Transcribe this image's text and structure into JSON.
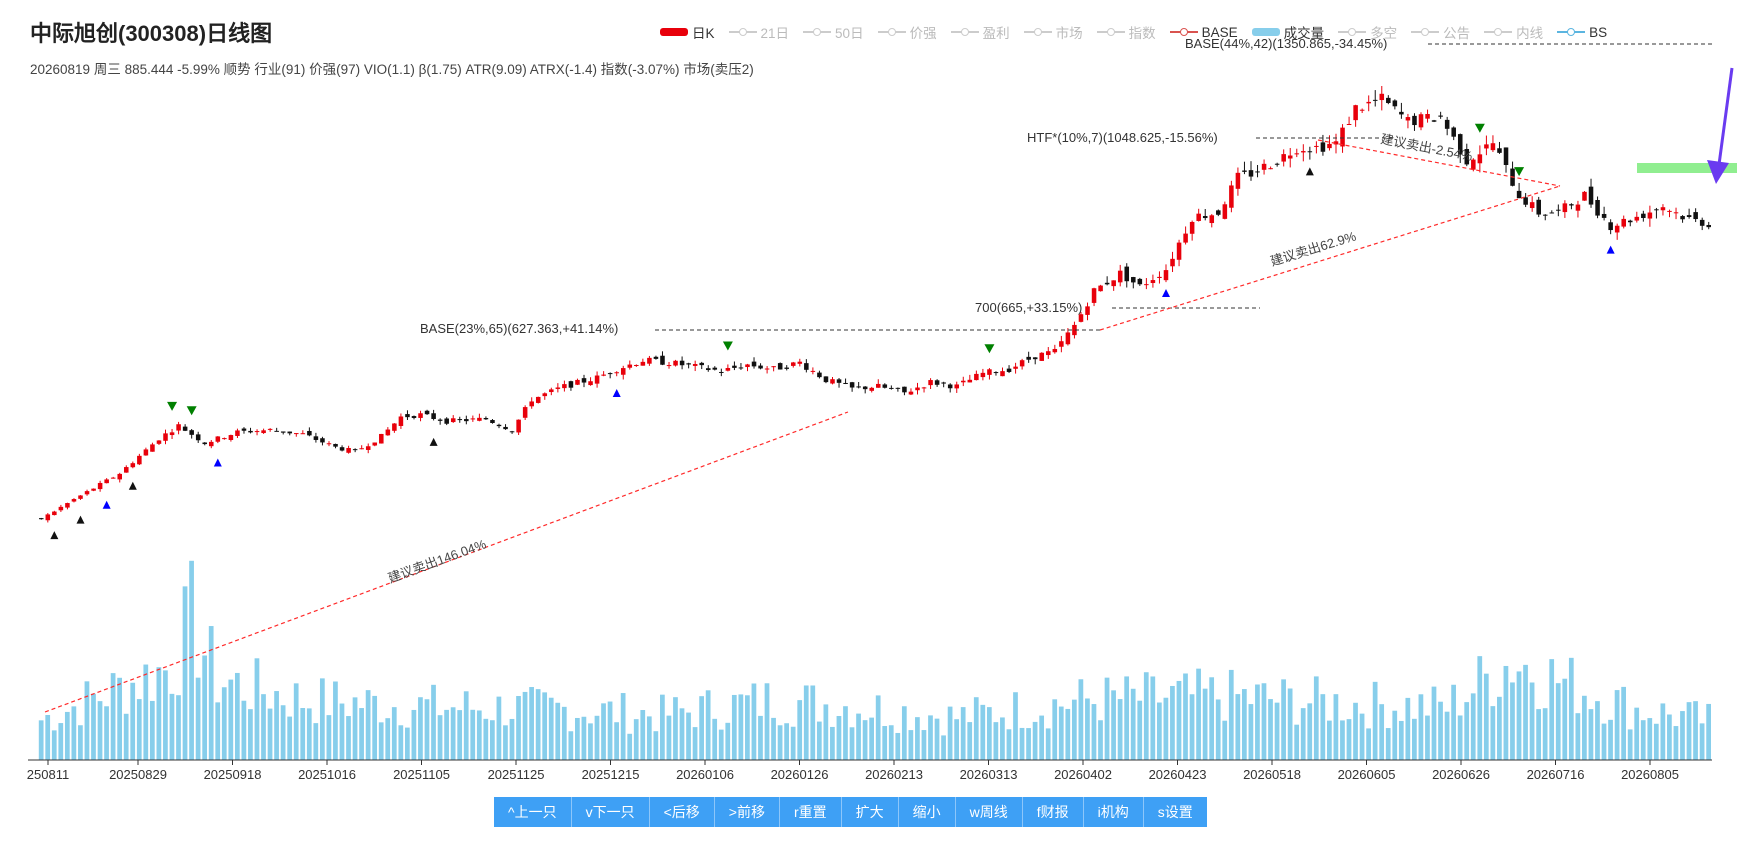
{
  "header": {
    "title": "中际旭创(300308)日线图",
    "subtitle": "20260819 周三 885.444 -5.99% 顺势 行业(91) 价强(97) VIO(1.1) β(1.75) ATR(9.09) ATRX(-1.4) 指数(-3.07%) 市场(卖压2)"
  },
  "legend": [
    {
      "label": "日K",
      "active": true,
      "color": "#e8000b",
      "marker": "rect"
    },
    {
      "label": "21日",
      "active": false,
      "color": "#cccccc",
      "marker": "line"
    },
    {
      "label": "50日",
      "active": false,
      "color": "#cccccc",
      "marker": "line"
    },
    {
      "label": "价强",
      "active": false,
      "color": "#cccccc",
      "marker": "line"
    },
    {
      "label": "盈利",
      "active": false,
      "color": "#cccccc",
      "marker": "line"
    },
    {
      "label": "市场",
      "active": false,
      "color": "#cccccc",
      "marker": "line"
    },
    {
      "label": "指数",
      "active": false,
      "color": "#cccccc",
      "marker": "line"
    },
    {
      "label": "BASE",
      "active": true,
      "color": "#d9534f",
      "marker": "line"
    },
    {
      "label": "成交量",
      "active": true,
      "color": "#87ceeb",
      "marker": "rect"
    },
    {
      "label": "多空",
      "active": false,
      "color": "#cccccc",
      "marker": "line"
    },
    {
      "label": "公告",
      "active": false,
      "color": "#cccccc",
      "marker": "line"
    },
    {
      "label": "内线",
      "active": false,
      "color": "#cccccc",
      "marker": "line"
    },
    {
      "label": "BS",
      "active": true,
      "color": "#5bb5e0",
      "marker": "line"
    }
  ],
  "toolbar": [
    {
      "label": "^上一只",
      "name": "prev-stock-button"
    },
    {
      "label": "v下一只",
      "name": "next-stock-button"
    },
    {
      "label": "<后移",
      "name": "shift-back-button"
    },
    {
      "label": ">前移",
      "name": "shift-forward-button"
    },
    {
      "label": "r重置",
      "name": "reset-button"
    },
    {
      "label": "扩大",
      "name": "zoom-in-button"
    },
    {
      "label": "缩小",
      "name": "zoom-out-button"
    },
    {
      "label": "w周线",
      "name": "weekly-button"
    },
    {
      "label": "f财报",
      "name": "financials-button"
    },
    {
      "label": "i机构",
      "name": "institutions-button"
    },
    {
      "label": "s设置",
      "name": "settings-button"
    }
  ],
  "chart_data": {
    "type": "candlestick",
    "x_tick_labels": [
      "250811",
      "20250829",
      "20250918",
      "20251016",
      "20251105",
      "20251125",
      "20251215",
      "20260106",
      "20260126",
      "20260213",
      "20260313",
      "20260402",
      "20260423",
      "20260518",
      "20260605",
      "20260626",
      "20260716",
      "20260805"
    ],
    "price_range": [
      248,
      1380
    ],
    "colors": {
      "up": "#e8000b",
      "down": "#111111",
      "volume": "#87ceeb",
      "annotation": "#333333",
      "trend": "#ff2a2a",
      "highlight": "#90ee90",
      "arrow": "#6a3bf0"
    },
    "price_path": [
      [
        0,
        255
      ],
      [
        5,
        300
      ],
      [
        12,
        360
      ],
      [
        18,
        440
      ],
      [
        21,
        470
      ],
      [
        25,
        430
      ],
      [
        30,
        455
      ],
      [
        35,
        460
      ],
      [
        40,
        450
      ],
      [
        45,
        420
      ],
      [
        48,
        410
      ],
      [
        52,
        445
      ],
      [
        55,
        490
      ],
      [
        58,
        495
      ],
      [
        62,
        480
      ],
      [
        68,
        485
      ],
      [
        72,
        460
      ],
      [
        75,
        530
      ],
      [
        80,
        560
      ],
      [
        85,
        580
      ],
      [
        88,
        600
      ],
      [
        92,
        620
      ],
      [
        96,
        615
      ],
      [
        100,
        605
      ],
      [
        104,
        595
      ],
      [
        108,
        610
      ],
      [
        112,
        600
      ],
      [
        116,
        615
      ],
      [
        120,
        575
      ],
      [
        124,
        555
      ],
      [
        128,
        560
      ],
      [
        132,
        545
      ],
      [
        136,
        570
      ],
      [
        140,
        560
      ],
      [
        144,
        590
      ],
      [
        148,
        600
      ],
      [
        152,
        630
      ],
      [
        155,
        640
      ],
      [
        158,
        700
      ],
      [
        161,
        780
      ],
      [
        165,
        820
      ],
      [
        168,
        790
      ],
      [
        172,
        830
      ],
      [
        176,
        950
      ],
      [
        180,
        960
      ],
      [
        183,
        1040
      ],
      [
        185,
        1050
      ],
      [
        189,
        1080
      ],
      [
        192,
        1110
      ],
      [
        195,
        1110
      ],
      [
        198,
        1120
      ],
      [
        201,
        1200
      ],
      [
        205,
        1220
      ],
      [
        209,
        1170
      ],
      [
        214,
        1180
      ],
      [
        218,
        1080
      ],
      [
        222,
        1120
      ],
      [
        226,
        1000
      ],
      [
        229,
        960
      ],
      [
        232,
        960
      ],
      [
        236,
        1000
      ],
      [
        240,
        930
      ],
      [
        244,
        950
      ],
      [
        248,
        975
      ],
      [
        252,
        945
      ],
      [
        255,
        935
      ]
    ],
    "volume_range": [
      0,
      120
    ],
    "volume_points": [
      [
        0,
        30
      ],
      [
        10,
        50
      ],
      [
        20,
        70
      ],
      [
        23,
        105
      ],
      [
        27,
        60
      ],
      [
        40,
        45
      ],
      [
        60,
        40
      ],
      [
        80,
        38
      ],
      [
        95,
        34
      ],
      [
        112,
        45
      ],
      [
        125,
        40
      ],
      [
        140,
        32
      ],
      [
        160,
        45
      ],
      [
        180,
        48
      ],
      [
        200,
        42
      ],
      [
        215,
        40
      ],
      [
        225,
        75
      ],
      [
        232,
        60
      ],
      [
        244,
        38
      ],
      [
        255,
        30
      ]
    ],
    "annotations": {
      "base1": "BASE(23%,65)(627.363,+41.14%)",
      "base2": "BASE(44%,42)(1350.865,-34.45%)",
      "htf": "HTF*(10%,7)(1048.625,-15.56%)",
      "level700": "700(665,+33.15%)",
      "sell1": "建议卖出146.04%",
      "sell2": "建议卖出62.9%",
      "sell3": "建议卖出-2.54%"
    }
  }
}
